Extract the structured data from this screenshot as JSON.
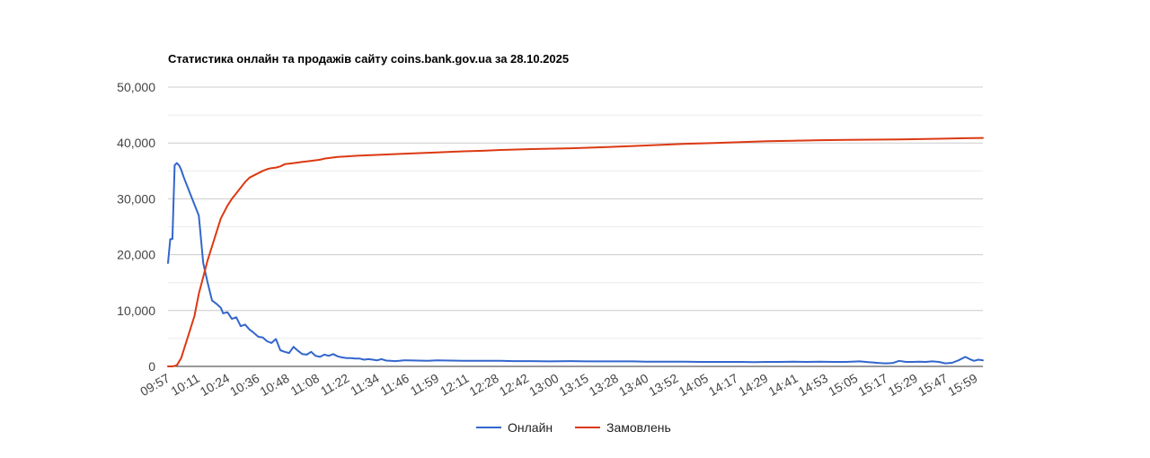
{
  "chart_data": {
    "type": "line",
    "title": "Статистика онлайн та продажів сайту coins.bank.gov.ua за 28.10.2025",
    "xlabel": "",
    "ylabel": "",
    "ylim": [
      0,
      50000
    ],
    "y_ticks": [
      "0",
      "10,000",
      "20,000",
      "30,000",
      "40,000",
      "50,000"
    ],
    "y_tick_values": [
      0,
      10000,
      20000,
      30000,
      40000,
      50000
    ],
    "x_tick_labels": [
      "09:57",
      "10:11",
      "10:24",
      "10:36",
      "10:48",
      "11:08",
      "11:22",
      "11:34",
      "11:46",
      "11:59",
      "12:11",
      "12:28",
      "12:42",
      "13:00",
      "13:15",
      "13:28",
      "13:40",
      "13:52",
      "14:05",
      "14:17",
      "14:29",
      "14:41",
      "14:53",
      "15:05",
      "15:17",
      "15:29",
      "15:47",
      "15:59"
    ],
    "grid": true,
    "legend_position": "bottom",
    "series": [
      {
        "name": "Онлайн",
        "color": "#3366cc",
        "x": [
          "09:57",
          "09:58",
          "09:59",
          "10:00",
          "10:01",
          "10:02",
          "10:03",
          "10:04",
          "10:05",
          "10:07",
          "10:09",
          "10:11",
          "10:13",
          "10:15",
          "10:17",
          "10:19",
          "10:21",
          "10:22",
          "10:24",
          "10:26",
          "10:28",
          "10:30",
          "10:32",
          "10:34",
          "10:36",
          "10:38",
          "10:40",
          "10:42",
          "10:44",
          "10:46",
          "10:48",
          "10:50",
          "10:52",
          "10:54",
          "10:56",
          "10:58",
          "11:00",
          "11:02",
          "11:04",
          "11:06",
          "11:08",
          "11:10",
          "11:12",
          "11:14",
          "11:16",
          "11:18",
          "11:20",
          "11:22",
          "11:24",
          "11:26",
          "11:28",
          "11:30",
          "11:32",
          "11:34",
          "11:36",
          "11:38",
          "11:40",
          "11:42",
          "11:44",
          "11:46",
          "11:50",
          "11:55",
          "11:57",
          "11:59",
          "12:05",
          "12:11",
          "12:20",
          "12:28",
          "12:34",
          "12:42",
          "12:50",
          "13:00",
          "13:07",
          "13:15",
          "13:21",
          "13:28",
          "13:34",
          "13:40",
          "13:46",
          "13:52",
          "13:58",
          "14:05",
          "14:11",
          "14:17",
          "14:23",
          "14:29",
          "14:35",
          "14:41",
          "14:47",
          "14:53",
          "14:59",
          "15:05",
          "15:11",
          "15:15",
          "15:17",
          "15:20",
          "15:23",
          "15:26",
          "15:29",
          "15:32",
          "15:35",
          "15:38",
          "15:41",
          "15:44",
          "15:47",
          "15:50",
          "15:53",
          "15:56",
          "15:59",
          "16:01",
          "16:03",
          "16:05",
          "16:07"
        ],
        "values": [
          18500,
          22800,
          22800,
          36000,
          36400,
          36000,
          35200,
          34000,
          33000,
          31000,
          29000,
          27000,
          18500,
          15000,
          11800,
          11200,
          10500,
          9500,
          9700,
          8500,
          8800,
          7200,
          7500,
          6600,
          6000,
          5300,
          5200,
          4500,
          4200,
          4900,
          2900,
          2600,
          2400,
          3500,
          2800,
          2200,
          2100,
          2600,
          1900,
          1700,
          2100,
          1900,
          2200,
          1800,
          1600,
          1500,
          1500,
          1400,
          1400,
          1200,
          1300,
          1200,
          1100,
          1300,
          1050,
          1000,
          950,
          1000,
          1100,
          1100,
          1050,
          1000,
          1050,
          1100,
          1050,
          1000,
          1000,
          1000,
          950,
          950,
          900,
          950,
          900,
          900,
          900,
          900,
          850,
          850,
          850,
          850,
          800,
          800,
          800,
          800,
          750,
          800,
          800,
          850,
          800,
          850,
          800,
          800,
          900,
          750,
          700,
          600,
          550,
          600,
          1000,
          800,
          800,
          850,
          800,
          900,
          800,
          550,
          650,
          1100,
          1700,
          1300,
          1000,
          1200,
          1100
        ]
      },
      {
        "name": "Замовлень",
        "color": "#dc3912",
        "x": [
          "09:57",
          "09:59",
          "10:01",
          "10:03",
          "10:05",
          "10:07",
          "10:09",
          "10:11",
          "10:13",
          "10:15",
          "10:17",
          "10:19",
          "10:21",
          "10:23",
          "10:24",
          "10:26",
          "10:28",
          "10:30",
          "10:32",
          "10:34",
          "10:36",
          "10:38",
          "10:40",
          "10:42",
          "10:44",
          "10:46",
          "10:48",
          "10:50",
          "10:52",
          "10:54",
          "10:56",
          "10:58",
          "11:00",
          "11:02",
          "11:04",
          "11:06",
          "11:08",
          "11:10",
          "11:14",
          "11:22",
          "11:34",
          "11:46",
          "11:59",
          "12:11",
          "12:20",
          "12:28",
          "12:42",
          "13:00",
          "13:15",
          "13:28",
          "13:40",
          "13:52",
          "14:05",
          "14:17",
          "14:29",
          "14:41",
          "14:53",
          "15:05",
          "15:17",
          "15:29",
          "15:47",
          "15:59",
          "16:07"
        ],
        "values": [
          0,
          0,
          200,
          1500,
          4000,
          6500,
          9000,
          13000,
          16000,
          19000,
          21500,
          24000,
          26500,
          28000,
          28800,
          30000,
          31000,
          32000,
          33000,
          33800,
          34200,
          34600,
          35000,
          35300,
          35500,
          35600,
          35800,
          36200,
          36300,
          36400,
          36500,
          36600,
          36700,
          36800,
          36900,
          37000,
          37200,
          37300,
          37500,
          37700,
          37900,
          38100,
          38300,
          38500,
          38600,
          38750,
          38900,
          39050,
          39250,
          39450,
          39650,
          39850,
          40000,
          40150,
          40300,
          40400,
          40500,
          40550,
          40600,
          40650,
          40750,
          40850,
          40900
        ]
      }
    ]
  }
}
